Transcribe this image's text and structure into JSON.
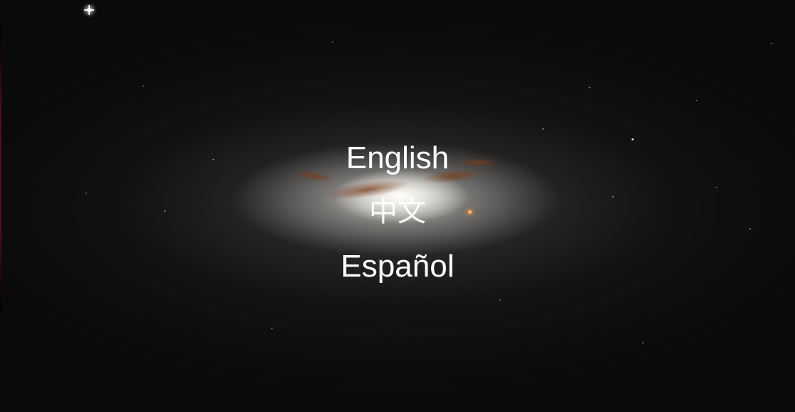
{
  "languages": [
    {
      "label": "English"
    },
    {
      "label": "中文"
    },
    {
      "label": "Español"
    }
  ],
  "background": {
    "subject": "galaxy-image",
    "colors": {
      "space": "#0b0a0a",
      "core": "#ffffff",
      "dust": "#8a4a22"
    }
  }
}
